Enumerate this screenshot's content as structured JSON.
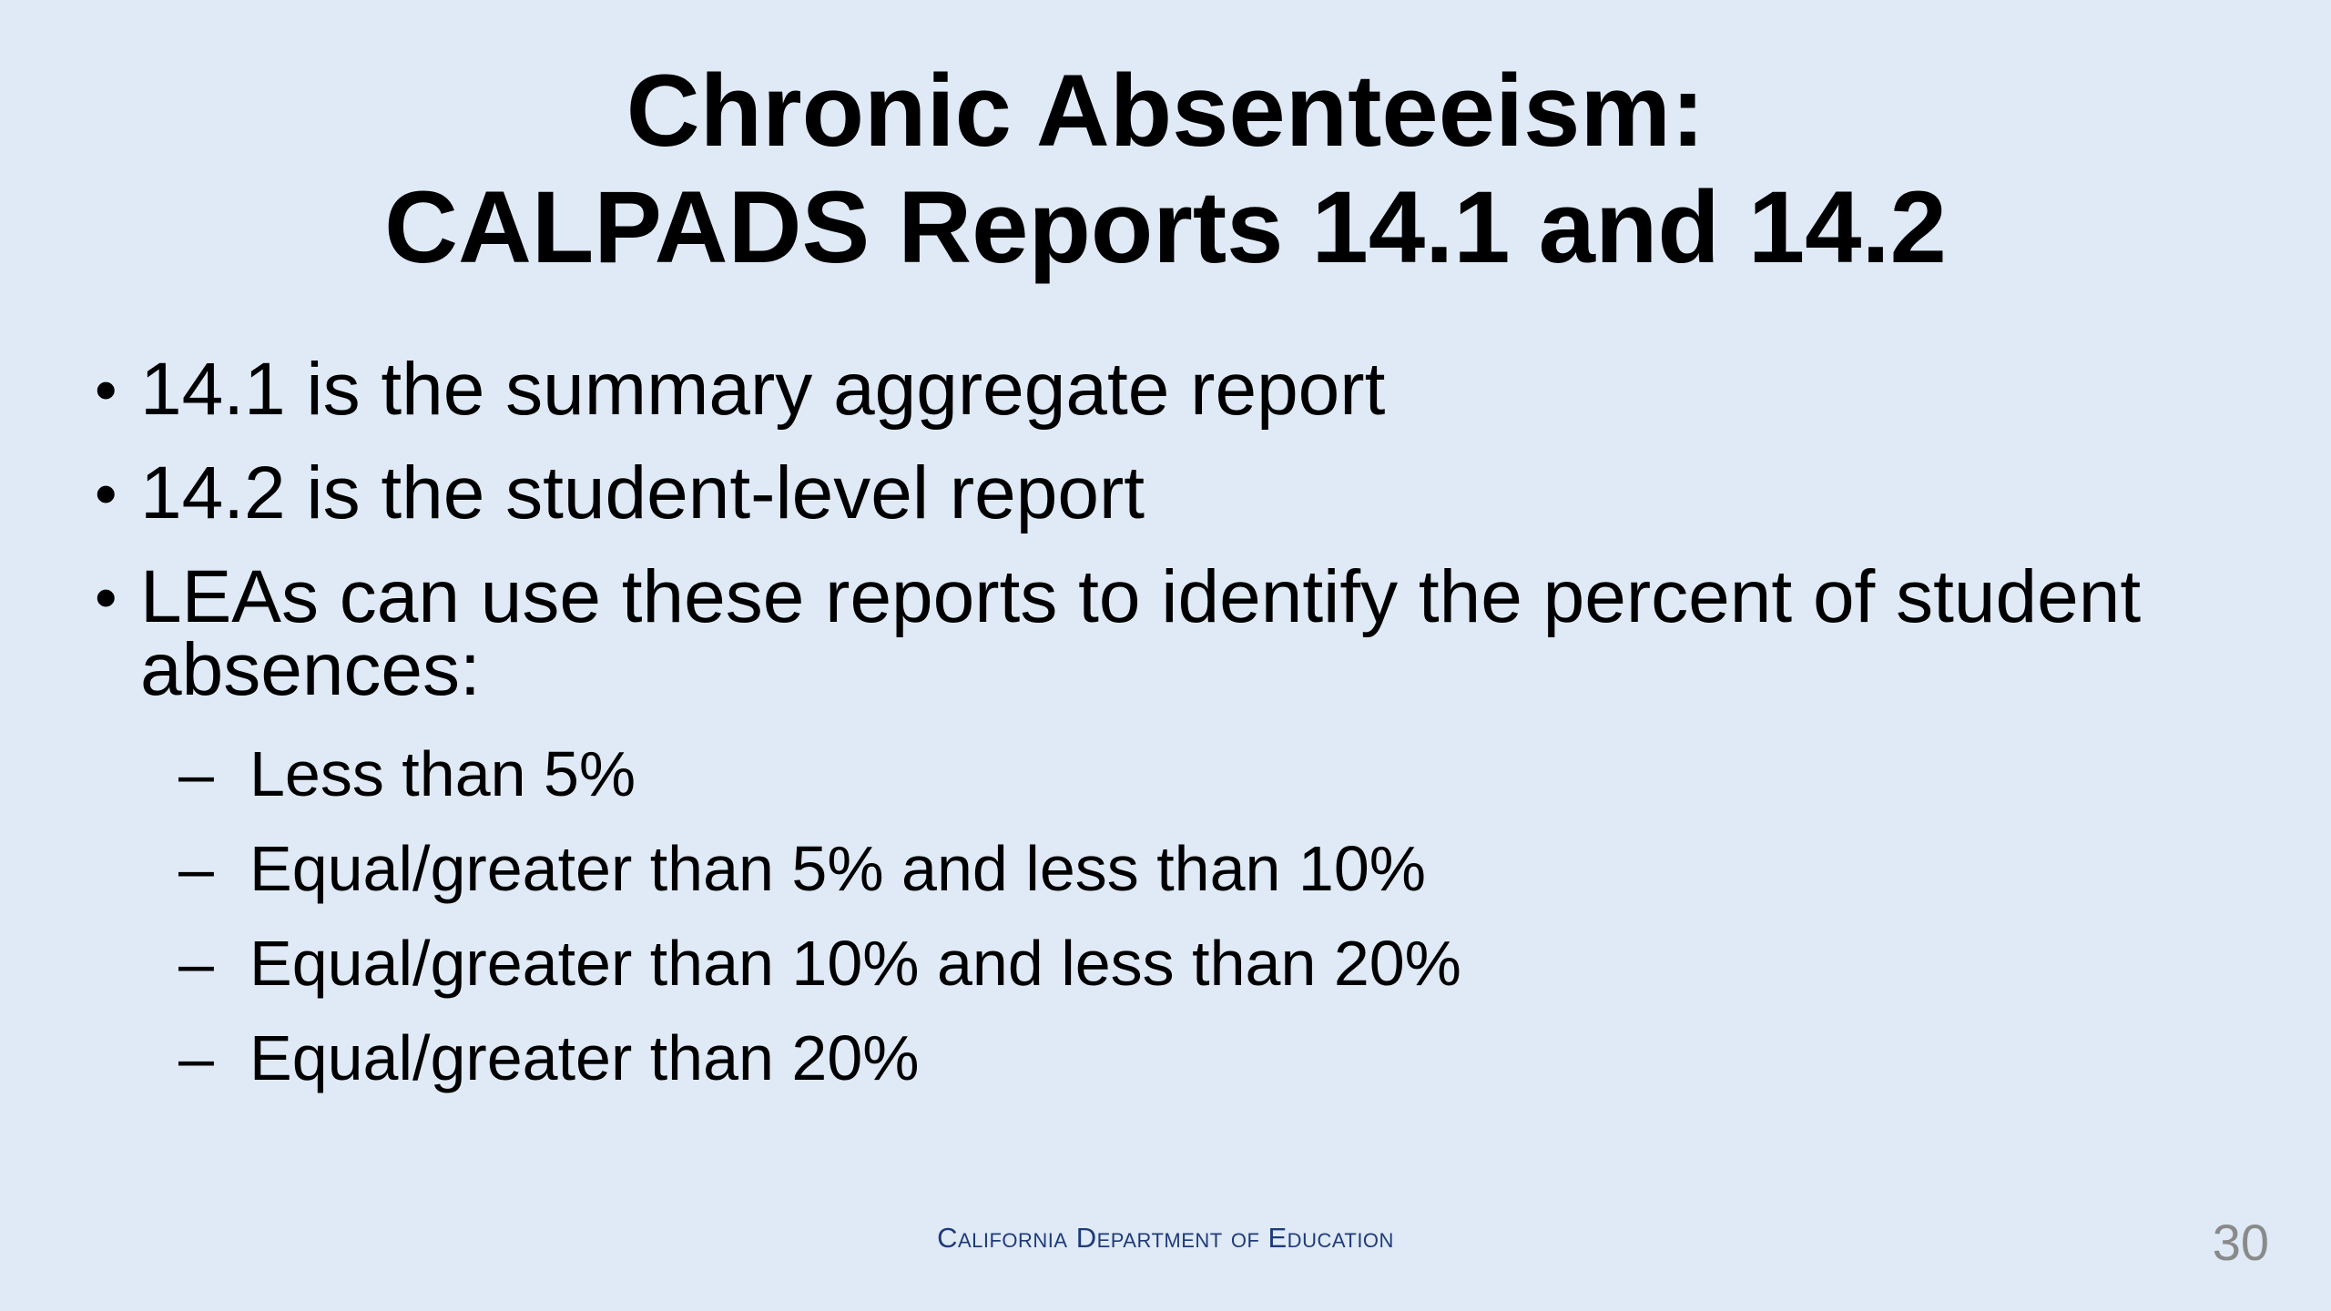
{
  "slide": {
    "title_line1": "Chronic Absenteeism:",
    "title_line2": "CALPADS Reports 14.1 and 14.2",
    "bullets": [
      {
        "marker": "•",
        "text": "14.1 is the summary aggregate report"
      },
      {
        "marker": "•",
        "text": "14.2 is the student-level report"
      },
      {
        "marker": "•",
        "text": "LEAs can use these reports to identify the percent of student absences:"
      }
    ],
    "sub_bullets": [
      {
        "marker": "–",
        "text": "Less than 5%"
      },
      {
        "marker": "–",
        "text": "Equal/greater than 5% and less than 10%"
      },
      {
        "marker": "–",
        "text": "Equal/greater than 10% and less than 20%"
      },
      {
        "marker": "–",
        "text": "Equal/greater than 20%"
      }
    ],
    "footer": "California Department of Education",
    "page_number": "30"
  },
  "colors": {
    "background": "#dfeaf6",
    "footer_text": "#1f3a7a",
    "page_number": "#8a8a8a"
  }
}
